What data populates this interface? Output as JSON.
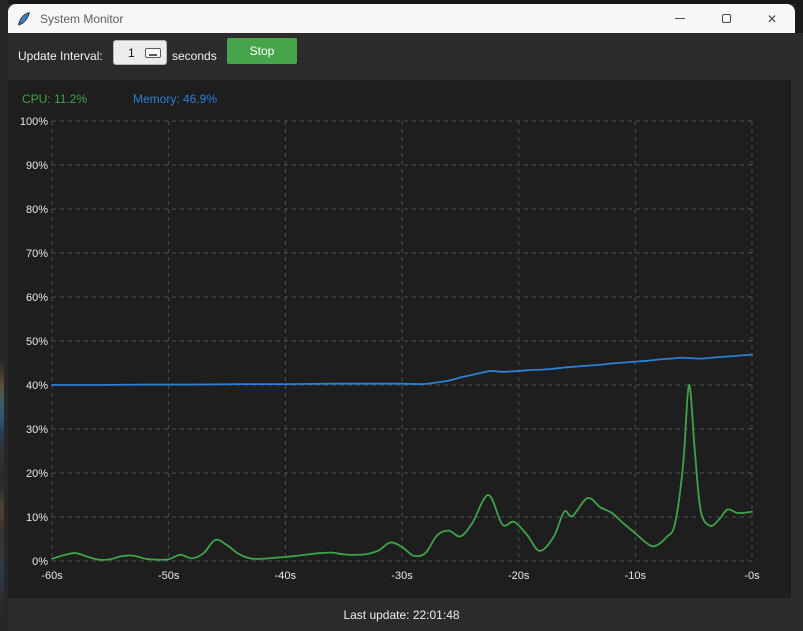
{
  "window": {
    "title": "System Monitor",
    "close_icon": "✕"
  },
  "toolbar": {
    "interval_label": "Update Interval:",
    "interval_value": "1",
    "interval_unit": "seconds",
    "stop_label": "Stop"
  },
  "legend": {
    "cpu_label": "CPU: 11.2%",
    "memory_label": "Memory: 46.9%"
  },
  "statusbar": {
    "text": "Last update: 22:01:48"
  },
  "colors": {
    "cpu": "#3fa34a",
    "memory": "#2b7fd6",
    "stop_button": "#46a44b",
    "grid": "#4d4d4d",
    "figure_bg": "#1e1e1e",
    "chrome_bg": "#2b2b2b",
    "tick_text": "#e8e8e8"
  },
  "chart_data": {
    "type": "line",
    "title": "",
    "xlabel": "",
    "ylabel": "",
    "xlim": [
      -60,
      0
    ],
    "ylim": [
      0,
      100
    ],
    "grid": "dashed",
    "legend_position": "top-left-labels",
    "xticks": {
      "values": [
        -60,
        -50,
        -40,
        -30,
        -20,
        -10,
        0
      ],
      "labels": [
        "-60s",
        "-50s",
        "-40s",
        "-30s",
        "-20s",
        "-10s",
        "-0s"
      ]
    },
    "yticks": {
      "values": [
        0,
        10,
        20,
        30,
        40,
        50,
        60,
        70,
        80,
        90,
        100
      ],
      "labels": [
        "0%",
        "10%",
        "20%",
        "30%",
        "40%",
        "50%",
        "60%",
        "70%",
        "80%",
        "90%",
        "100%"
      ]
    },
    "series": [
      {
        "name": "Memory",
        "color": "#2b7fd6",
        "current": 46.9,
        "points": [
          [
            -60,
            40.0
          ],
          [
            -56,
            40.0
          ],
          [
            -52,
            40.1
          ],
          [
            -48,
            40.1
          ],
          [
            -44,
            40.2
          ],
          [
            -40,
            40.2
          ],
          [
            -36,
            40.3
          ],
          [
            -33,
            40.3
          ],
          [
            -30,
            40.3
          ],
          [
            -28.5,
            40.2
          ],
          [
            -27.5,
            40.4
          ],
          [
            -26,
            41.0
          ],
          [
            -25,
            41.7
          ],
          [
            -24,
            42.3
          ],
          [
            -23,
            42.9
          ],
          [
            -22.3,
            43.2
          ],
          [
            -21.5,
            43.0
          ],
          [
            -20.5,
            43.1
          ],
          [
            -19,
            43.4
          ],
          [
            -18,
            43.5
          ],
          [
            -17,
            43.7
          ],
          [
            -16,
            44.0
          ],
          [
            -15,
            44.2
          ],
          [
            -14,
            44.4
          ],
          [
            -13,
            44.6
          ],
          [
            -12,
            44.9
          ],
          [
            -11,
            45.1
          ],
          [
            -10,
            45.3
          ],
          [
            -9,
            45.5
          ],
          [
            -8,
            45.8
          ],
          [
            -7,
            46.0
          ],
          [
            -6,
            46.2
          ],
          [
            -5.2,
            46.1
          ],
          [
            -4.4,
            46.0
          ],
          [
            -3.5,
            46.2
          ],
          [
            -2.5,
            46.4
          ],
          [
            -1.5,
            46.6
          ],
          [
            0,
            46.9
          ]
        ]
      },
      {
        "name": "CPU",
        "color": "#3fa34a",
        "current": 11.2,
        "points": [
          [
            -60,
            0.5
          ],
          [
            -59,
            1.3
          ],
          [
            -58,
            1.8
          ],
          [
            -57,
            1.0
          ],
          [
            -56,
            0.3
          ],
          [
            -55,
            0.4
          ],
          [
            -54,
            1.1
          ],
          [
            -53,
            1.2
          ],
          [
            -52,
            0.5
          ],
          [
            -51,
            0.3
          ],
          [
            -50,
            0.4
          ],
          [
            -49,
            1.4
          ],
          [
            -48,
            0.6
          ],
          [
            -47,
            1.8
          ],
          [
            -46,
            4.8
          ],
          [
            -45,
            3.6
          ],
          [
            -44,
            1.6
          ],
          [
            -43,
            0.6
          ],
          [
            -42,
            0.5
          ],
          [
            -41,
            0.7
          ],
          [
            -40,
            0.9
          ],
          [
            -39,
            1.2
          ],
          [
            -38,
            1.5
          ],
          [
            -37,
            1.8
          ],
          [
            -36,
            1.9
          ],
          [
            -35,
            1.5
          ],
          [
            -34,
            1.4
          ],
          [
            -33,
            1.6
          ],
          [
            -32,
            2.4
          ],
          [
            -31,
            4.2
          ],
          [
            -30,
            3.2
          ],
          [
            -29,
            1.2
          ],
          [
            -28,
            1.8
          ],
          [
            -27,
            5.8
          ],
          [
            -26,
            6.9
          ],
          [
            -25,
            5.6
          ],
          [
            -24,
            8.5
          ],
          [
            -22.6,
            15.0
          ],
          [
            -21.4,
            8.3
          ],
          [
            -20.4,
            8.9
          ],
          [
            -19.3,
            6.0
          ],
          [
            -18.2,
            2.3
          ],
          [
            -17,
            5.5
          ],
          [
            -16.1,
            11.2
          ],
          [
            -15.4,
            10.2
          ],
          [
            -14.1,
            14.3
          ],
          [
            -13,
            12.2
          ],
          [
            -12,
            10.9
          ],
          [
            -11,
            8.5
          ],
          [
            -10,
            6.3
          ],
          [
            -9,
            4.0
          ],
          [
            -8.3,
            3.4
          ],
          [
            -7.3,
            5.5
          ],
          [
            -6.6,
            8.5
          ],
          [
            -5.9,
            22.0
          ],
          [
            -5.4,
            40.0
          ],
          [
            -4.9,
            25.0
          ],
          [
            -4.4,
            11.5
          ],
          [
            -3.6,
            8.0
          ],
          [
            -2.8,
            9.5
          ],
          [
            -2.1,
            11.7
          ],
          [
            -1.2,
            10.9
          ],
          [
            0,
            11.2
          ]
        ]
      }
    ]
  }
}
